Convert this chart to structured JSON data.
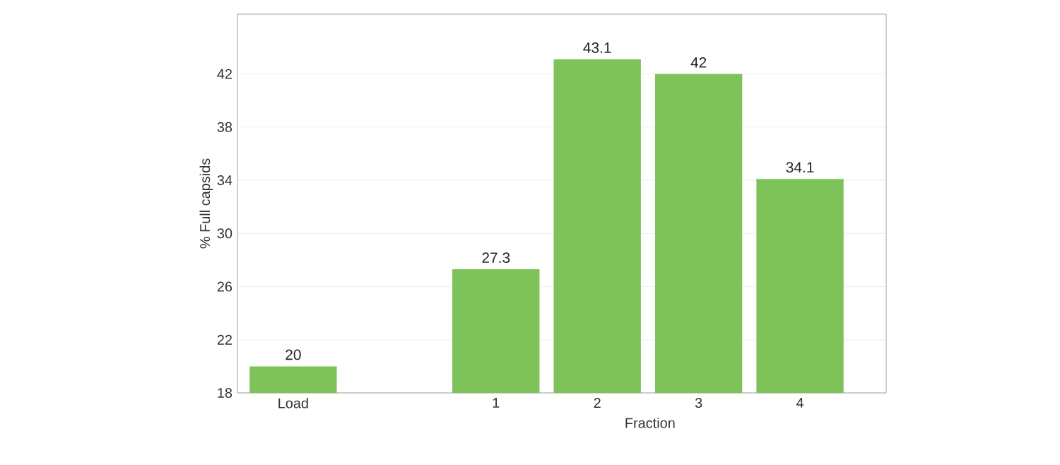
{
  "chart_data": {
    "type": "bar",
    "xlabel": "Fraction",
    "ylabel": "% Full capsids",
    "categories": [
      "Load",
      null,
      "1",
      "2",
      "3",
      "4"
    ],
    "values": [
      20,
      null,
      27.3,
      43.1,
      42,
      34.1
    ],
    "color": "#7dc35a",
    "ylim": [
      18,
      46.5
    ],
    "yticks": [
      18,
      22,
      26,
      30,
      34,
      38,
      42
    ],
    "grid": "y",
    "data_labels": true
  }
}
